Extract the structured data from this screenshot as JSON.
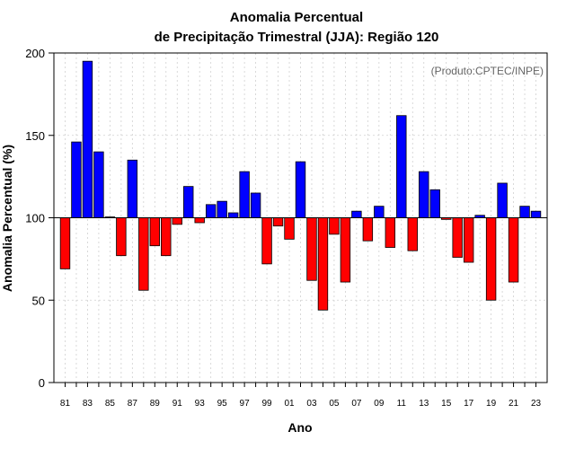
{
  "chart_data": {
    "type": "bar",
    "title_line1": "Anomalia Percentual",
    "title_line2": "de Precipitação Trimestral (JJA): Região 120",
    "xlabel": "Ano",
    "ylabel": "Anomalia Percentual (%)",
    "credit": "(Produto:CPTEC/INPE)",
    "ylim": [
      0,
      200
    ],
    "yticks": [
      0,
      50,
      100,
      150,
      200
    ],
    "baseline": 100,
    "years": [
      1981,
      1982,
      1983,
      1984,
      1985,
      1986,
      1987,
      1988,
      1989,
      1990,
      1991,
      1992,
      1993,
      1994,
      1995,
      1996,
      1997,
      1998,
      1999,
      2000,
      2001,
      2002,
      2003,
      2004,
      2005,
      2006,
      2007,
      2008,
      2009,
      2010,
      2011,
      2012,
      2013,
      2014,
      2015,
      2016,
      2017,
      2018,
      2019,
      2020,
      2021,
      2022,
      2023
    ],
    "xtick_labels": [
      "81",
      "83",
      "85",
      "87",
      "89",
      "91",
      "93",
      "95",
      "97",
      "99",
      "01",
      "03",
      "05",
      "07",
      "09",
      "11",
      "13",
      "15",
      "17",
      "19",
      "21",
      "23"
    ],
    "values": [
      69,
      146,
      195,
      140,
      100.5,
      77,
      135,
      56,
      83,
      77,
      96,
      119,
      97,
      108,
      110,
      103,
      128,
      115,
      72,
      95,
      87,
      134,
      62,
      44,
      90,
      61,
      104,
      86,
      107,
      82,
      162,
      80,
      128,
      117,
      99,
      76,
      73,
      101.5,
      50,
      121,
      61,
      107,
      104
    ],
    "colors": {
      "above": "#0000ff",
      "below": "#ff0000",
      "grid": "#d0d0d0"
    }
  }
}
